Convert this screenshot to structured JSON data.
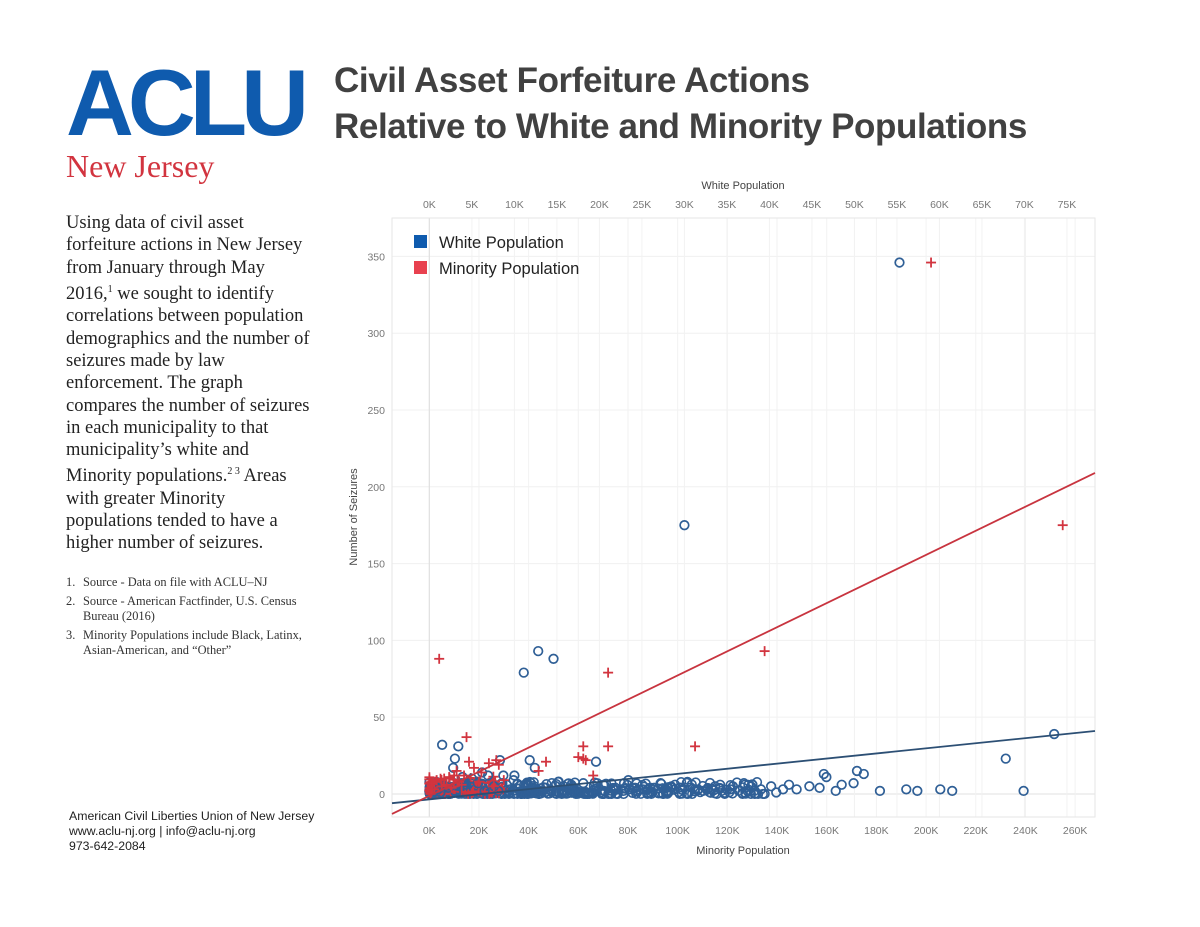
{
  "logo": {
    "main": "ACLU",
    "sub": "New Jersey"
  },
  "title": {
    "line1": "Civil Asset Forfeiture Actions",
    "line2": "Relative to White and Minority Populations"
  },
  "intro": {
    "text_a": "Using data of civil asset forfeiture actions in New Jersey from January through May 2016,",
    "sup1": "1",
    "text_b": " we sought to identify correlations between population demographics and the number of seizures made by law enforcement. The graph compares the number of seizures in each municipality to that municipality’s white and Minority populations.",
    "sup2": "2 3",
    "text_c": " Areas with greater Minority populations tended to have a higher number of seizures."
  },
  "footnotes": [
    {
      "num": "1.",
      "text": "Source - Data on file with ACLU–NJ"
    },
    {
      "num": "2.",
      "text": "Source - American Factfinder, U.S. Census Bureau (2016)"
    },
    {
      "num": "3.",
      "text": "Minority Populations include Black, Latinx, Asian-American, and “Other”"
    }
  ],
  "footer": {
    "org": "American Civil Liberties Union of New Jersey",
    "contact": "www.aclu-nj.org | info@aclu-nj.org",
    "phone": "973-642-2084"
  },
  "colors": {
    "white": "#2f5f96",
    "minority": "#d2343f",
    "legend_white": "#0f5bae",
    "legend_minority": "#e8414f"
  },
  "chart_data": {
    "type": "scatter",
    "title": "Civil Asset Forfeiture Actions Relative to White and Minority Populations",
    "ylabel": "Number of Seizures",
    "ylim": [
      -15,
      375
    ],
    "yticks": [
      0,
      50,
      100,
      150,
      200,
      250,
      300,
      350
    ],
    "ytick_labels": [
      "0",
      "50",
      "100",
      "150",
      "200",
      "250",
      "300",
      "350"
    ],
    "grid": true,
    "legend": {
      "position": "top-left",
      "entries": [
        "White Population",
        "Minority Population"
      ]
    },
    "x_top": {
      "label": "White Population",
      "range_k": [
        -4.4,
        78.3
      ],
      "ticks_k": [
        0,
        5,
        10,
        15,
        20,
        25,
        30,
        35,
        40,
        45,
        50,
        55,
        60,
        65,
        70,
        75
      ],
      "tick_labels": [
        "0K",
        "5K",
        "10K",
        "15K",
        "20K",
        "25K",
        "30K",
        "35K",
        "40K",
        "45K",
        "50K",
        "55K",
        "60K",
        "65K",
        "70K",
        "75K"
      ]
    },
    "x_bottom": {
      "label": "Minority Population",
      "range_k": [
        -15,
        268
      ],
      "ticks_k": [
        0,
        20,
        40,
        60,
        80,
        100,
        120,
        140,
        160,
        180,
        200,
        220,
        240,
        260
      ],
      "tick_labels": [
        "0K",
        "20K",
        "40K",
        "60K",
        "80K",
        "100K",
        "120K",
        "140K",
        "160K",
        "180K",
        "200K",
        "220K",
        "240K",
        "260K"
      ]
    },
    "series": [
      {
        "name": "White Population",
        "marker": "circle",
        "axis": "x_top",
        "x_k": [
          55.3,
          30.0,
          12.8,
          14.6,
          11.1,
          1.5,
          3.4,
          3.0,
          8.3,
          11.8,
          12.4,
          2.8,
          6.2,
          6.9,
          8.7,
          10.0,
          3.9,
          19.6,
          5.0,
          9.9,
          15.2,
          22.9,
          28.9,
          35.7,
          23.4,
          27.2,
          24.2,
          33.6,
          37.0,
          38.0,
          39.0,
          40.2,
          41.6,
          42.3,
          43.2,
          46.4,
          46.7,
          48.5,
          49.9,
          53.0,
          61.5,
          67.8,
          69.9,
          73.5,
          1.0,
          2.2,
          4.3,
          5.7,
          7.6,
          9.5,
          13.7,
          16.7,
          18.1,
          20.5,
          21.8,
          26.0,
          28.0,
          31.6,
          32.2,
          34.2,
          35.4,
          36.4,
          44.7,
          50.3,
          51.1,
          56.1,
          57.4,
          60.1,
          1.3,
          3.1,
          6.5,
          8.1,
          11.7,
          15.7,
          17.3,
          19.0,
          24.6,
          31.2,
          40.8,
          45.9,
          47.8
        ],
        "y": [
          346,
          175,
          93,
          88,
          79,
          32,
          31,
          23,
          22,
          22,
          17,
          17,
          14,
          12,
          12,
          12,
          11,
          21,
          10,
          9,
          8,
          7,
          6,
          5,
          9,
          7,
          4,
          5,
          7,
          6,
          3,
          5,
          3,
          6,
          3,
          13,
          11,
          6,
          7,
          2,
          2,
          23,
          2,
          39,
          3,
          4,
          6,
          7,
          5,
          3,
          4,
          6,
          7,
          2,
          3,
          4,
          2,
          3,
          2,
          6,
          3,
          2,
          5,
          15,
          13,
          3,
          2,
          3,
          1,
          1,
          2,
          2,
          1,
          1,
          2,
          1,
          3,
          3,
          1,
          4,
          2
        ]
      },
      {
        "name": "Minority Population",
        "marker": "plus",
        "axis": "x_bottom",
        "x_k": [
          202,
          255,
          135,
          4,
          72,
          15,
          62,
          72,
          107,
          44,
          47,
          60,
          62,
          63,
          66,
          1,
          3,
          6,
          8,
          10,
          11,
          12,
          14,
          16,
          18,
          21,
          24,
          27,
          28,
          30,
          2,
          5,
          7,
          9,
          13,
          20,
          26
        ],
        "y": [
          346,
          175,
          93,
          88,
          79,
          37,
          31,
          31,
          31,
          15,
          21,
          24,
          23,
          22,
          12,
          7,
          9,
          10,
          11,
          12,
          15,
          8,
          12,
          21,
          17,
          14,
          20,
          22,
          19,
          9,
          3,
          5,
          6,
          4,
          6,
          8,
          5
        ]
      }
    ],
    "dense_cluster": {
      "description": "hundreds of overlapping points near the origin",
      "white_x_k_range": [
        0,
        40
      ],
      "minority_x_k_range": [
        0,
        68
      ],
      "y_range": [
        0,
        8
      ]
    },
    "trend_lines": [
      {
        "name": "White Population trend",
        "axis": "x_top",
        "x_k": [
          -4.4,
          78.3
        ],
        "y": [
          -6,
          41
        ]
      },
      {
        "name": "Minority Population trend",
        "axis": "x_bottom",
        "x_k": [
          -15,
          268
        ],
        "y": [
          -13,
          209
        ]
      }
    ]
  }
}
